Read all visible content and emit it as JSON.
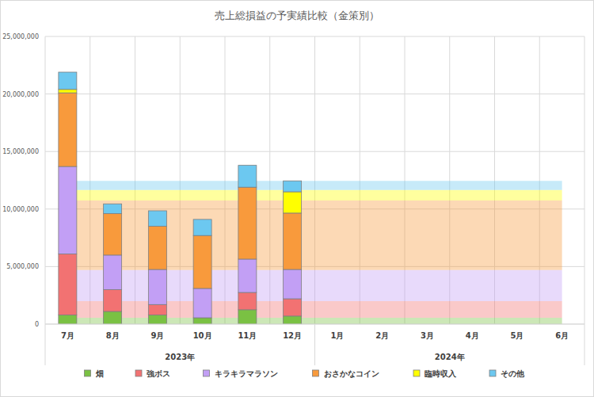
{
  "chart_data": {
    "type": "bar",
    "title": "売上総損益の予実績比較（金策別）",
    "stacked": true,
    "grid": true,
    "legend": "bottom",
    "categories": [
      "7月",
      "8月",
      "9月",
      "10月",
      "11月",
      "12月",
      "1月",
      "2月",
      "3月",
      "4月",
      "5月",
      "6月"
    ],
    "x_groups": [
      {
        "label": "2023年",
        "count": 6
      },
      {
        "label": "2024年",
        "count": 6
      }
    ],
    "ylim": [
      0,
      25000000
    ],
    "yticks": [
      0,
      {
        "value": 5000000,
        "label": "5,000,000"
      },
      {
        "value": 10000000,
        "label": "10,000,000"
      },
      {
        "value": 15000000,
        "label": "15,000,000"
      },
      {
        "value": 20000000,
        "label": "20,000,000"
      },
      {
        "value": 25000000,
        "label": "25,000,000"
      }
    ],
    "series": [
      {
        "name": "畑",
        "color": "#7ac143",
        "values": [
          800000,
          1100000,
          800000,
          550000,
          1250000,
          700000,
          null,
          null,
          null,
          null,
          null,
          null
        ],
        "plan": [
          550000,
          550000,
          550000,
          550000,
          550000,
          550000,
          550000,
          550000,
          550000,
          550000,
          550000,
          550000
        ]
      },
      {
        "name": "強ボス",
        "color": "#f27272",
        "values": [
          5300000,
          1900000,
          900000,
          0,
          1500000,
          1500000,
          null,
          null,
          null,
          null,
          null,
          null
        ],
        "plan": [
          1450000,
          1450000,
          1450000,
          1450000,
          1450000,
          1450000,
          1450000,
          1450000,
          1450000,
          1450000,
          1450000,
          1450000
        ]
      },
      {
        "name": "キラキラマラソン",
        "color": "#c29ff5",
        "values": [
          7600000,
          3000000,
          3050000,
          2550000,
          2900000,
          2550000,
          null,
          null,
          null,
          null,
          null,
          null
        ],
        "plan": [
          2700000,
          2700000,
          2700000,
          2700000,
          2700000,
          2700000,
          2700000,
          2700000,
          2700000,
          2700000,
          2700000,
          2700000
        ]
      },
      {
        "name": "おさかなコイン",
        "color": "#f89a3c",
        "values": [
          6400000,
          3600000,
          3750000,
          4600000,
          6250000,
          4900000,
          null,
          null,
          null,
          null,
          null,
          null
        ],
        "plan": [
          6050000,
          6050000,
          6050000,
          6050000,
          6050000,
          6050000,
          6050000,
          6050000,
          6050000,
          6050000,
          6050000,
          6050000
        ]
      },
      {
        "name": "臨時収入",
        "color": "#ffff00",
        "values": [
          300000,
          0,
          0,
          0,
          0,
          1850000,
          null,
          null,
          null,
          null,
          null,
          null
        ],
        "plan": [
          900000,
          900000,
          900000,
          900000,
          900000,
          900000,
          900000,
          900000,
          900000,
          900000,
          900000,
          900000
        ]
      },
      {
        "name": "その他",
        "color": "#6cc8f0",
        "values": [
          1500000,
          850000,
          1350000,
          1400000,
          1900000,
          950000,
          null,
          null,
          null,
          null,
          null,
          null
        ],
        "plan": [
          800000,
          800000,
          800000,
          800000,
          800000,
          800000,
          800000,
          800000,
          800000,
          800000,
          800000,
          800000
        ]
      }
    ]
  }
}
